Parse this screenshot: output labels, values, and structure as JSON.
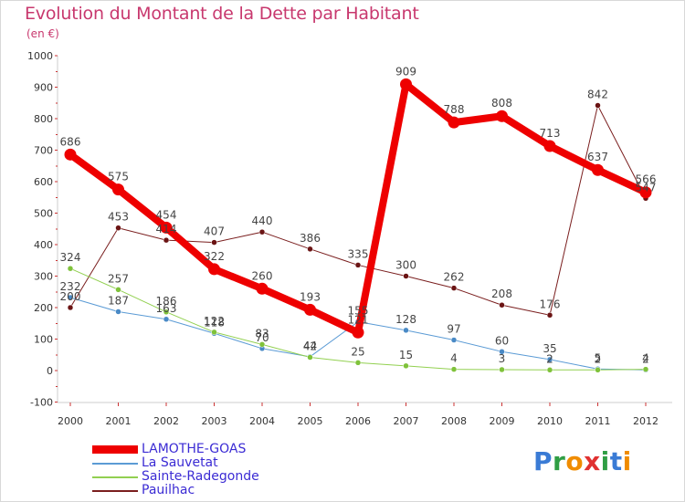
{
  "header": {
    "title": "Evolution du Montant de la Dette par Habitant",
    "subtitle": "(en €)"
  },
  "logo": {
    "text": "Proxiti",
    "letter_colors": [
      "#3a7bd5",
      "#2f9e44",
      "#f08c00",
      "#e03131",
      "#2f9e44",
      "#3a7bd5",
      "#f08c00"
    ]
  },
  "chart_data": {
    "type": "line",
    "title": "Evolution du Montant de la Dette par Habitant",
    "subtitle": "(en €)",
    "xlabel": "",
    "ylabel": "",
    "x": [
      "2000",
      "2001",
      "2002",
      "2003",
      "2004",
      "2005",
      "2006",
      "2007",
      "2008",
      "2009",
      "2010",
      "2011",
      "2012"
    ],
    "ylim": [
      -100,
      1000
    ],
    "yticks": [
      -100,
      0,
      100,
      200,
      300,
      400,
      500,
      600,
      700,
      800,
      900,
      1000
    ],
    "grid": false,
    "legend_position": "bottom-left",
    "series": [
      {
        "name": "Pauilhac",
        "color": "#7a1e1e",
        "marker": "#6b1414",
        "width": 1,
        "values": [
          200,
          453,
          414,
          407,
          440,
          386,
          335,
          300,
          262,
          208,
          176,
          842,
          547
        ]
      },
      {
        "name": "La Sauvetat",
        "color": "#5b9bd5",
        "marker": "#4a8ac6",
        "width": 1,
        "values": [
          232,
          187,
          163,
          118,
          70,
          44,
          155,
          128,
          97,
          60,
          35,
          5,
          2
        ]
      },
      {
        "name": "Sainte-Radegonde",
        "color": "#92d050",
        "marker": "#7fc23a",
        "width": 1,
        "values": [
          324,
          257,
          186,
          122,
          83,
          42,
          25,
          15,
          4,
          3,
          2,
          2,
          4
        ]
      },
      {
        "name": "LAMOTHE-GOAS",
        "color": "#ee0000",
        "marker": "#ee0000",
        "width": 8,
        "values": [
          686,
          575,
          454,
          322,
          260,
          193,
          121,
          909,
          788,
          808,
          713,
          637,
          566
        ]
      }
    ],
    "legend_order": [
      "LAMOTHE-GOAS",
      "La Sauvetat",
      "Sainte-Radegonde",
      "Pauilhac"
    ]
  }
}
